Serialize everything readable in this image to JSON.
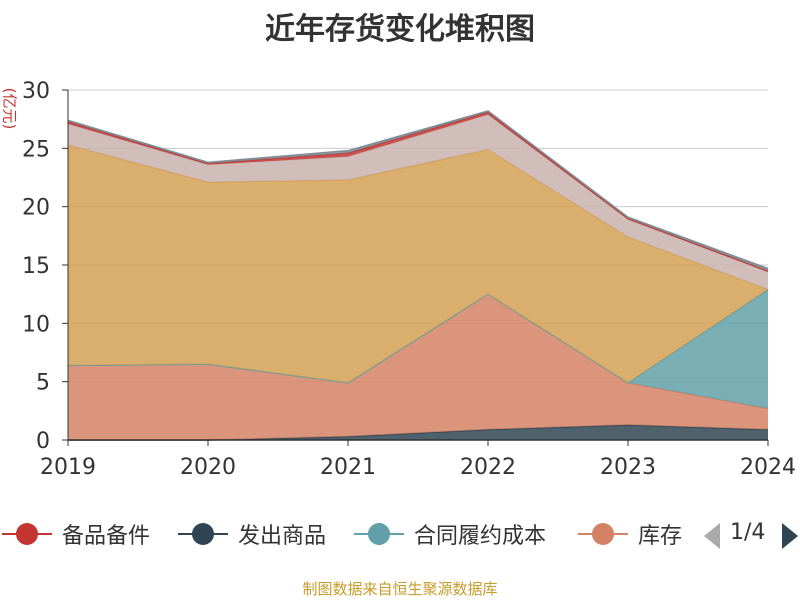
{
  "chart_data": {
    "type": "area",
    "stacked": true,
    "title": "近年存货变化堆积图",
    "unit_label": "(亿元)",
    "x": [
      "2019",
      "2020",
      "2021",
      "2022",
      "2023",
      "2024"
    ],
    "ylim": [
      0,
      30
    ],
    "yticks": [
      0,
      5,
      10,
      15,
      20,
      25,
      30
    ],
    "grid": true,
    "series": [
      {
        "name": "发出商品",
        "color": "#2f4554",
        "values": [
          0.0,
          0.0,
          0.3,
          0.9,
          1.3,
          0.9
        ]
      },
      {
        "name": "库存",
        "color": "#d48265",
        "values": [
          6.4,
          6.5,
          4.6,
          11.6,
          3.6,
          1.8
        ]
      },
      {
        "name": "合同履约成本",
        "color": "#61a0a8",
        "values": [
          0.0,
          0.0,
          0.0,
          0.0,
          0.0,
          10.2
        ]
      },
      {
        "name": null,
        "color": "#d4a052",
        "values": [
          18.9,
          15.6,
          17.4,
          12.4,
          12.5,
          0.0
        ]
      },
      {
        "name": null,
        "color": "#c9b1ad",
        "values": [
          1.8,
          1.5,
          2.0,
          3.0,
          1.5,
          1.5
        ]
      },
      {
        "name": "备品备件",
        "color": "#c23531",
        "values": [
          0.2,
          0.1,
          0.3,
          0.2,
          0.1,
          0.1
        ]
      },
      {
        "name": null,
        "color": "#7f8c95",
        "values": [
          0.1,
          0.1,
          0.2,
          0.1,
          0.1,
          0.2
        ]
      }
    ]
  },
  "legend": {
    "items": [
      {
        "label": "备品备件",
        "color": "#c23531"
      },
      {
        "label": "发出商品",
        "color": "#2f4554"
      },
      {
        "label": "合同履约成本",
        "color": "#61a0a8"
      },
      {
        "label": "库存",
        "color": "#d48265"
      }
    ],
    "page_text": "1/4"
  },
  "source": "制图数据来自恒生聚源数据库"
}
